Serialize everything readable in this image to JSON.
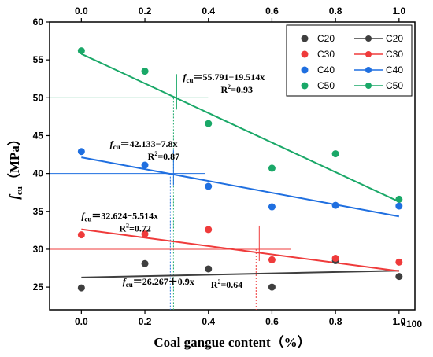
{
  "chart_data": {
    "type": "scatter",
    "xlabel": "Coal gangue content（%）",
    "x_multiplier": "×100",
    "ylabel_main": "f",
    "ylabel_sub": "cu",
    "ylabel_unit": "（MPa）",
    "xlim": [
      -0.1,
      1.05
    ],
    "ylim": [
      22,
      60
    ],
    "xticks": [
      0.0,
      0.2,
      0.4,
      0.6,
      0.8,
      1.0
    ],
    "xtick_labels": [
      "0.0",
      "0.2",
      "0.4",
      "0.6",
      "0.8",
      "1.0"
    ],
    "yticks": [
      25,
      30,
      35,
      40,
      45,
      50,
      55,
      60
    ],
    "ytick_labels": [
      "25",
      "30",
      "35",
      "40",
      "45",
      "50",
      "55",
      "60"
    ],
    "top_xtick_labels": [
      "0.0",
      "0.2",
      "0.4",
      "0.6",
      "0.8",
      "1.0"
    ],
    "legend_position": "top-right",
    "series": [
      {
        "name": "C20",
        "color": "#3f3f3f",
        "fit_line_color": "#3f3f3f",
        "x": [
          0.0,
          0.2,
          0.4,
          0.6,
          0.8,
          1.0
        ],
        "y": [
          24.9,
          28.1,
          27.4,
          25.0,
          28.5,
          26.4
        ],
        "fit": {
          "intercept": 26.267,
          "slope": 0.9
        }
      },
      {
        "name": "C30",
        "color": "#ef3b3b",
        "fit_line_color": "#ef3b3b",
        "x": [
          0.0,
          0.2,
          0.4,
          0.6,
          0.8,
          1.0
        ],
        "y": [
          31.9,
          32.0,
          32.6,
          28.6,
          28.8,
          28.3
        ],
        "fit": {
          "intercept": 32.624,
          "slope": -5.514
        }
      },
      {
        "name": "C40",
        "color": "#1f6fe0",
        "fit_line_color": "#1f6fe0",
        "x": [
          0.0,
          0.2,
          0.4,
          0.6,
          0.8,
          1.0
        ],
        "y": [
          42.9,
          41.1,
          38.3,
          35.6,
          35.8,
          35.7
        ],
        "fit": {
          "intercept": 42.133,
          "slope": -7.8
        }
      },
      {
        "name": "C50",
        "color": "#1aa868",
        "fit_line_color": "#1aa868",
        "x": [
          0.0,
          0.2,
          0.4,
          0.6,
          0.8,
          1.0
        ],
        "y": [
          56.2,
          53.5,
          46.6,
          40.7,
          42.6,
          36.6
        ],
        "fit": {
          "intercept": 55.791,
          "slope": -19.514
        }
      }
    ],
    "annotations": [
      {
        "series": "C50",
        "eq_lhs": "f",
        "eq_sub": "cu",
        "eq_rhs": "＝55.791−19.514x",
        "r2_label": "R",
        "r2_sup": "2",
        "r2_value": "=0.93",
        "anchor": [
          0.32,
          52.3
        ]
      },
      {
        "series": "C40",
        "eq_lhs": "f",
        "eq_sub": "cu",
        "eq_rhs": "＝42.133−7.8x",
        "r2_label": "R",
        "r2_sup": "2",
        "r2_value": "=0.87",
        "anchor": [
          0.09,
          43.5
        ]
      },
      {
        "series": "C30",
        "eq_lhs": "f",
        "eq_sub": "cu",
        "eq_rhs": "＝32.624−5.514x",
        "r2_label": "R",
        "r2_sup": "2",
        "r2_value": "=0.72",
        "anchor": [
          0.0,
          34.0
        ]
      },
      {
        "series": "C20",
        "eq_lhs": "f",
        "eq_sub": "cu",
        "eq_rhs": "＝26.267＋0.9x",
        "r2_label": "R",
        "r2_sup": "2",
        "r2_value": "=0.64",
        "anchor": [
          0.13,
          25.3
        ]
      }
    ],
    "crosshairs": [
      {
        "series": "C50",
        "x": 0.3,
        "y": 50.0
      },
      {
        "series": "C40",
        "x": 0.29,
        "y": 40.0
      },
      {
        "series": "C30",
        "x": 0.56,
        "y": 30.0
      }
    ]
  }
}
